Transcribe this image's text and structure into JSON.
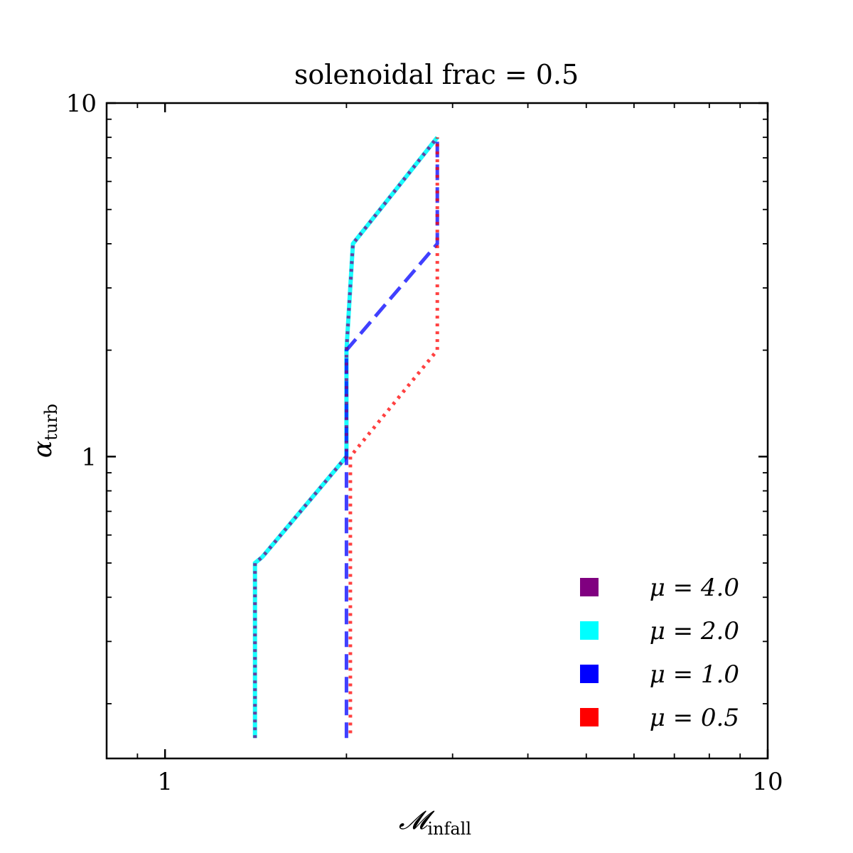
{
  "chart_data": {
    "type": "line",
    "title": "solenoidal frac = 0.5",
    "xlabel": "𝓜",
    "xlabel_sub": "infall",
    "ylabel": "α",
    "ylabel_sub": "turb",
    "xscale": "log",
    "yscale": "log",
    "xlim": [
      0.8,
      10
    ],
    "ylim": [
      0.14,
      10
    ],
    "x_tick_labels": [
      "1",
      "10"
    ],
    "y_tick_labels": [
      "1",
      "10"
    ],
    "grid": false,
    "legend_position": "lower-right",
    "series": [
      {
        "name": "μ = 4.0",
        "color": "#800080",
        "style": "dotted",
        "x": [
          1.41,
          1.41,
          1.45,
          2.0,
          2.0,
          2.05,
          2.83
        ],
        "y": [
          0.16,
          0.5,
          0.52,
          1.0,
          2.0,
          4.0,
          8.0
        ]
      },
      {
        "name": "μ = 2.0",
        "color": "#00ffff",
        "style": "solid",
        "x": [
          1.41,
          1.41,
          1.45,
          2.0,
          2.0,
          2.05,
          2.83
        ],
        "y": [
          0.16,
          0.5,
          0.52,
          1.0,
          2.0,
          4.0,
          8.0
        ]
      },
      {
        "name": "μ = 1.0",
        "color": "#0000ff",
        "style": "dashed",
        "x": [
          2.0,
          2.0,
          2.0,
          2.83,
          2.83
        ],
        "y": [
          0.16,
          1.0,
          2.0,
          4.0,
          8.0
        ]
      },
      {
        "name": "μ = 0.5",
        "color": "#ff0000",
        "style": "dotted",
        "x": [
          2.03,
          2.03,
          2.83,
          2.83
        ],
        "y": [
          0.165,
          1.0,
          2.0,
          8.0
        ]
      }
    ]
  }
}
